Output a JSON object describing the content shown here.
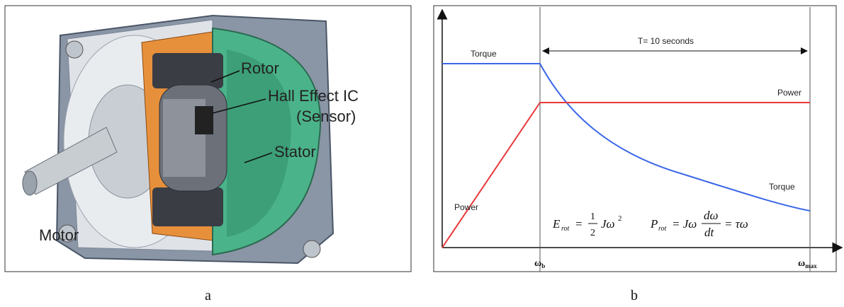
{
  "panel_a": {
    "labels": {
      "rotor": "Rotor",
      "hall": "Hall Effect IC",
      "sensor": "(Sensor)",
      "stator": "Stator",
      "motor": "Motor"
    },
    "caption": "a"
  },
  "panel_b": {
    "period": "T= 10 seconds",
    "curve_labels": {
      "torque_left": "Torque",
      "power_right": "Power",
      "power_left": "Power",
      "torque_right": "Torque"
    },
    "energy_formula": {
      "symbol": "E",
      "subscript": "rot",
      "equals": "=",
      "numerator": "1",
      "denominator": "2",
      "term": "Jω",
      "power": "2"
    },
    "power_formula": {
      "symbol": "P",
      "subscript": "rot",
      "equals": "= Jω",
      "numerator": "dω",
      "denominator": "dt",
      "result": "= τω"
    },
    "axis_labels": {
      "base": "ω",
      "base_sub": "b",
      "max": "ω",
      "max_sub": "max"
    },
    "caption": "b"
  }
}
